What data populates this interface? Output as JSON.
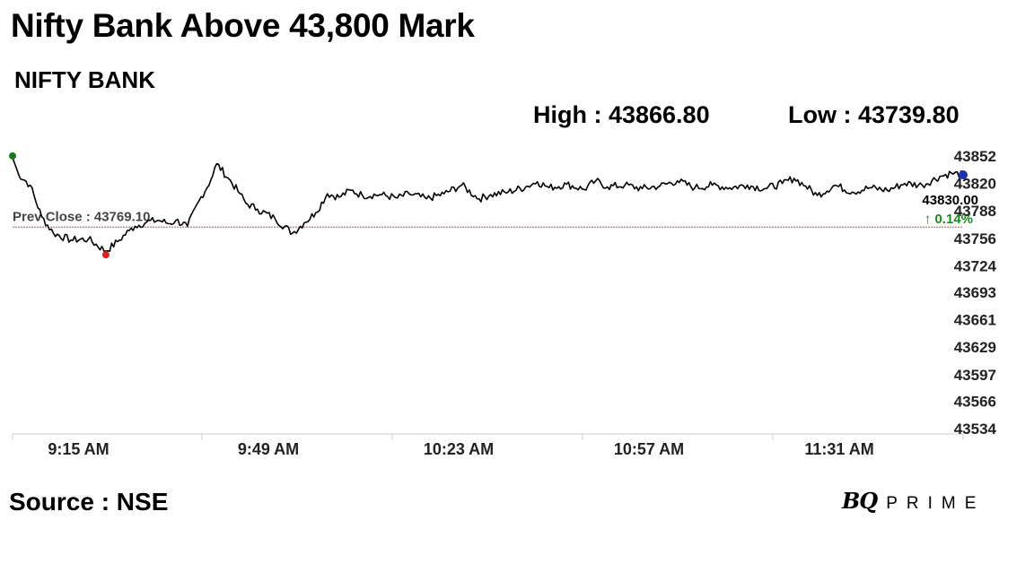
{
  "header": {
    "title": "Nifty Bank Above 43,800 Mark",
    "index_name": "NIFTY BANK",
    "high_text": "High : 43866.80",
    "low_text": "Low : 43739.80"
  },
  "footer": {
    "source": "Source : NSE",
    "brand_mark": "BQ",
    "brand_word": "PRIME"
  },
  "colors": {
    "line": "#000000",
    "prev_close_line": "#c0504d",
    "open_marker": "#1a7a1a",
    "low_marker": "#e02020",
    "last_marker": "#1f2fb0",
    "change_positive": "#1a8a1a",
    "axis": "#cccccc"
  },
  "chart_data": {
    "type": "line",
    "title": "",
    "xlabel": "",
    "ylabel": "",
    "x_ticks": [
      "9:15 AM",
      "9:49 AM",
      "10:23 AM",
      "10:57 AM",
      "11:31 AM"
    ],
    "y_ticks": [
      43852,
      43820,
      43788,
      43756,
      43724,
      43693,
      43661,
      43629,
      43597,
      43566,
      43534
    ],
    "ylim": [
      43534,
      43852
    ],
    "x_range_minutes": [
      "9:15 AM",
      "11:58 AM"
    ],
    "prev_close": 43769.1,
    "prev_close_label": "Prev Close : 43769.10",
    "last_value": 43830.0,
    "last_label": "43830.00",
    "change_label": "↑ 0.14%",
    "high": 43866.8,
    "low": 43739.8,
    "grid": false,
    "series": [
      {
        "x": [
          "9:15",
          "9:16",
          "9:18",
          "9:20",
          "9:22",
          "9:25",
          "9:28",
          "9:31",
          "9:33",
          "9:35",
          "9:36",
          "9:38",
          "9:40",
          "9:42",
          "9:43",
          "9:45",
          "9:47",
          "9:49",
          "9:50",
          "9:52",
          "9:54",
          "9:55",
          "9:57",
          "10:00",
          "10:03",
          "10:05",
          "10:07",
          "10:09",
          "10:11",
          "10:13",
          "10:15",
          "10:18",
          "10:21",
          "10:23",
          "10:26",
          "10:29",
          "10:32",
          "10:35",
          "10:37",
          "10:40",
          "10:43",
          "10:45",
          "10:47",
          "10:50",
          "10:53",
          "10:55",
          "10:57",
          "11:00",
          "11:03",
          "11:06",
          "11:09",
          "11:12",
          "11:15",
          "11:18",
          "11:21",
          "11:24",
          "11:27",
          "11:29",
          "11:31",
          "11:33",
          "11:36",
          "11:39",
          "11:42",
          "11:45",
          "11:48",
          "11:51",
          "11:54",
          "11:56",
          "11:58"
        ],
        "values": [
          43850,
          43831,
          43818,
          43781,
          43762,
          43754,
          43755,
          43741,
          43752,
          43765,
          43770,
          43775,
          43777,
          43773,
          43777,
          43770,
          43800,
          43824,
          43843,
          43826,
          43808,
          43797,
          43790,
          43779,
          43762,
          43774,
          43786,
          43808,
          43804,
          43812,
          43806,
          43807,
          43803,
          43808,
          43802,
          43808,
          43818,
          43802,
          43807,
          43810,
          43816,
          43822,
          43815,
          43819,
          43813,
          43823,
          43816,
          43818,
          43814,
          43817,
          43823,
          43815,
          43818,
          43815,
          43818,
          43814,
          43820,
          43826,
          43817,
          43806,
          43818,
          43810,
          43815,
          43812,
          43820,
          43818,
          43828,
          43832,
          43830
        ]
      }
    ]
  }
}
